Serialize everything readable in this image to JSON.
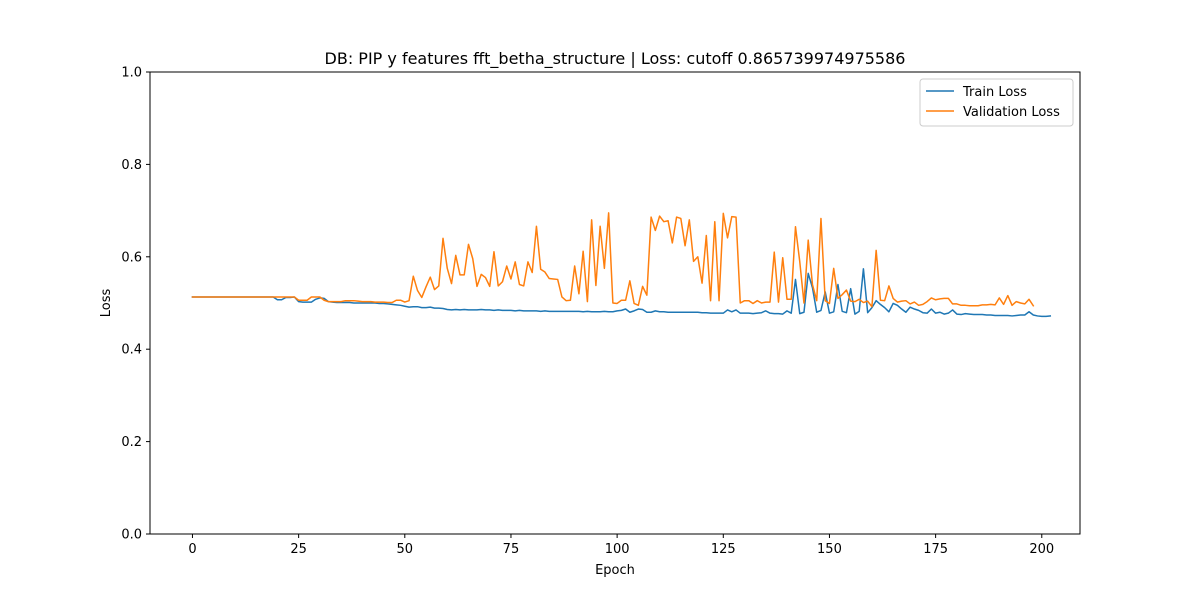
{
  "chart_data": {
    "type": "line",
    "title": "DB: PIP y features fft_betha_structure | Loss: cutoff 0.865739974975586",
    "xlabel": "Epoch",
    "ylabel": "Loss",
    "xlim": [
      -10,
      209
    ],
    "ylim": [
      0.0,
      1.0
    ],
    "xticks": [
      "0",
      "25",
      "50",
      "75",
      "100",
      "125",
      "150",
      "175",
      "200"
    ],
    "yticks": [
      "0.0",
      "0.2",
      "0.4",
      "0.6",
      "0.8",
      "1.0"
    ],
    "grid": false,
    "legend_position": "top-right",
    "series": [
      {
        "name": "Train Loss",
        "color": "#1f77b4",
        "values": [
          0.513,
          0.513,
          0.513,
          0.513,
          0.513,
          0.513,
          0.513,
          0.513,
          0.513,
          0.513,
          0.513,
          0.513,
          0.513,
          0.513,
          0.513,
          0.513,
          0.513,
          0.513,
          0.513,
          0.513,
          0.507,
          0.507,
          0.512,
          0.512,
          0.513,
          0.503,
          0.502,
          0.502,
          0.502,
          0.508,
          0.511,
          0.51,
          0.503,
          0.502,
          0.501,
          0.501,
          0.501,
          0.501,
          0.5,
          0.5,
          0.5,
          0.5,
          0.5,
          0.5,
          0.499,
          0.499,
          0.498,
          0.497,
          0.496,
          0.495,
          0.493,
          0.491,
          0.492,
          0.492,
          0.49,
          0.49,
          0.491,
          0.489,
          0.489,
          0.488,
          0.486,
          0.485,
          0.486,
          0.485,
          0.486,
          0.485,
          0.485,
          0.485,
          0.486,
          0.485,
          0.485,
          0.484,
          0.485,
          0.484,
          0.484,
          0.484,
          0.483,
          0.484,
          0.483,
          0.483,
          0.483,
          0.483,
          0.482,
          0.483,
          0.482,
          0.482,
          0.482,
          0.482,
          0.482,
          0.482,
          0.482,
          0.482,
          0.481,
          0.482,
          0.481,
          0.481,
          0.481,
          0.482,
          0.481,
          0.481,
          0.483,
          0.484,
          0.487,
          0.48,
          0.483,
          0.487,
          0.486,
          0.48,
          0.48,
          0.483,
          0.481,
          0.481,
          0.48,
          0.48,
          0.48,
          0.48,
          0.48,
          0.48,
          0.48,
          0.48,
          0.479,
          0.479,
          0.478,
          0.478,
          0.478,
          0.478,
          0.485,
          0.481,
          0.485,
          0.478,
          0.478,
          0.478,
          0.477,
          0.478,
          0.479,
          0.483,
          0.478,
          0.477,
          0.477,
          0.476,
          0.483,
          0.478,
          0.551,
          0.477,
          0.48,
          0.564,
          0.533,
          0.48,
          0.484,
          0.524,
          0.478,
          0.481,
          0.54,
          0.482,
          0.479,
          0.531,
          0.476,
          0.482,
          0.574,
          0.479,
          0.49,
          0.505,
          0.497,
          0.49,
          0.481,
          0.499,
          0.495,
          0.487,
          0.48,
          0.491,
          0.487,
          0.484,
          0.479,
          0.478,
          0.487,
          0.478,
          0.48,
          0.476,
          0.478,
          0.485,
          0.476,
          0.475,
          0.477,
          0.476,
          0.475,
          0.475,
          0.475,
          0.474,
          0.474,
          0.473,
          0.473,
          0.473,
          0.473,
          0.472,
          0.473,
          0.474,
          0.474,
          0.481,
          0.474,
          0.472,
          0.471,
          0.471,
          0.472
        ]
      },
      {
        "name": "Validation Loss",
        "color": "#ff7f0e",
        "values": [
          0.513,
          0.513,
          0.513,
          0.513,
          0.513,
          0.513,
          0.513,
          0.513,
          0.513,
          0.513,
          0.513,
          0.513,
          0.513,
          0.513,
          0.513,
          0.513,
          0.513,
          0.513,
          0.513,
          0.513,
          0.513,
          0.513,
          0.513,
          0.513,
          0.513,
          0.506,
          0.506,
          0.506,
          0.513,
          0.513,
          0.513,
          0.506,
          0.503,
          0.503,
          0.503,
          0.503,
          0.505,
          0.505,
          0.505,
          0.504,
          0.503,
          0.503,
          0.503,
          0.502,
          0.502,
          0.502,
          0.501,
          0.501,
          0.506,
          0.506,
          0.502,
          0.505,
          0.558,
          0.527,
          0.512,
          0.535,
          0.556,
          0.529,
          0.537,
          0.64,
          0.575,
          0.542,
          0.603,
          0.561,
          0.561,
          0.627,
          0.596,
          0.536,
          0.562,
          0.555,
          0.536,
          0.611,
          0.537,
          0.546,
          0.58,
          0.552,
          0.589,
          0.54,
          0.537,
          0.589,
          0.566,
          0.666,
          0.573,
          0.567,
          0.553,
          0.552,
          0.551,
          0.513,
          0.505,
          0.506,
          0.58,
          0.52,
          0.612,
          0.503,
          0.68,
          0.538,
          0.666,
          0.575,
          0.695,
          0.5,
          0.499,
          0.506,
          0.506,
          0.548,
          0.499,
          0.495,
          0.536,
          0.517,
          0.686,
          0.657,
          0.688,
          0.676,
          0.678,
          0.63,
          0.686,
          0.683,
          0.624,
          0.68,
          0.59,
          0.6,
          0.543,
          0.646,
          0.505,
          0.676,
          0.505,
          0.694,
          0.641,
          0.687,
          0.686,
          0.5,
          0.505,
          0.505,
          0.499,
          0.505,
          0.5,
          0.502,
          0.502,
          0.61,
          0.502,
          0.598,
          0.508,
          0.508,
          0.665,
          0.59,
          0.5,
          0.636,
          0.54,
          0.505,
          0.683,
          0.505,
          0.499,
          0.575,
          0.51,
          0.518,
          0.528,
          0.504,
          0.503,
          0.508,
          0.501,
          0.504,
          0.492,
          0.614,
          0.506,
          0.505,
          0.537,
          0.51,
          0.502,
          0.504,
          0.505,
          0.498,
          0.502,
          0.495,
          0.497,
          0.503,
          0.511,
          0.507,
          0.509,
          0.51,
          0.51,
          0.498,
          0.498,
          0.495,
          0.495,
          0.494,
          0.494,
          0.494,
          0.496,
          0.496,
          0.497,
          0.496,
          0.511,
          0.497,
          0.516,
          0.495,
          0.503,
          0.5,
          0.498,
          0.508,
          0.494
        ]
      }
    ]
  }
}
